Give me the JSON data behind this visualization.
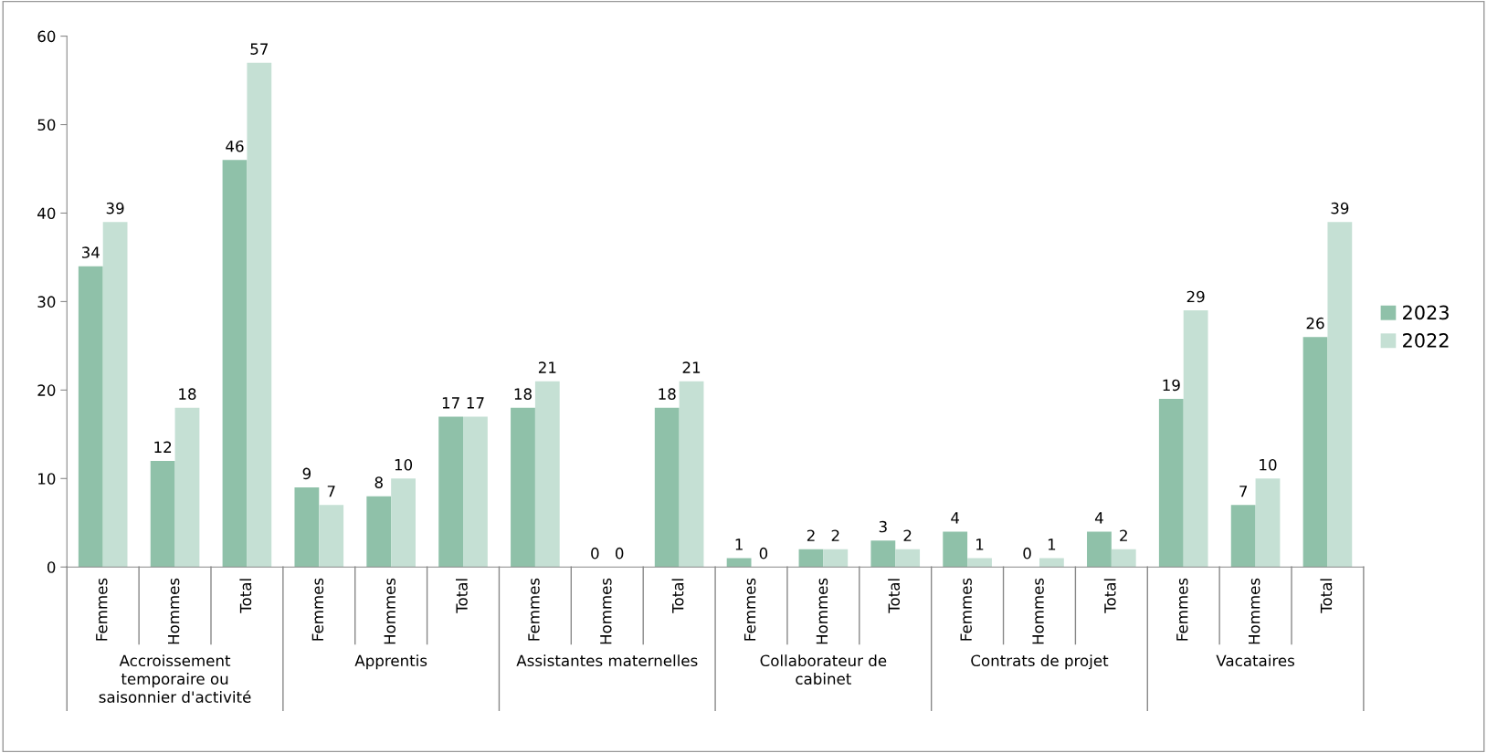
{
  "chart_data": {
    "type": "bar",
    "categories": [
      "Femmes",
      "Hommes",
      "Total",
      "Femmes",
      "Hommes",
      "Total",
      "Femmes",
      "Hommes",
      "Total",
      "Femmes",
      "Hommes",
      "Total",
      "Femmes",
      "Hommes",
      "Total",
      "Femmes",
      "Hommes",
      "Total"
    ],
    "series": [
      {
        "name": "2023",
        "color": "#8fc1a9",
        "values": [
          34,
          12,
          46,
          9,
          8,
          17,
          18,
          0,
          18,
          1,
          2,
          3,
          4,
          0,
          4,
          19,
          7,
          26
        ]
      },
      {
        "name": "2022",
        "color": "#c5e0d4",
        "values": [
          39,
          18,
          57,
          7,
          10,
          17,
          21,
          0,
          21,
          0,
          2,
          2,
          1,
          1,
          2,
          29,
          10,
          39
        ]
      }
    ],
    "annotations": [
      "Accroissement\ntemporaire ou\nsaisonnier d'activité",
      "Apprentis",
      "Assistantes maternelles",
      "Collaborateur de\ncabinet",
      "Contrats de projet",
      "Vacataires"
    ],
    "ylim": [
      0,
      60
    ],
    "yticks": [
      0,
      10,
      20,
      30,
      40,
      50,
      60
    ],
    "data_labels": true,
    "grid": false,
    "legend": "right"
  }
}
